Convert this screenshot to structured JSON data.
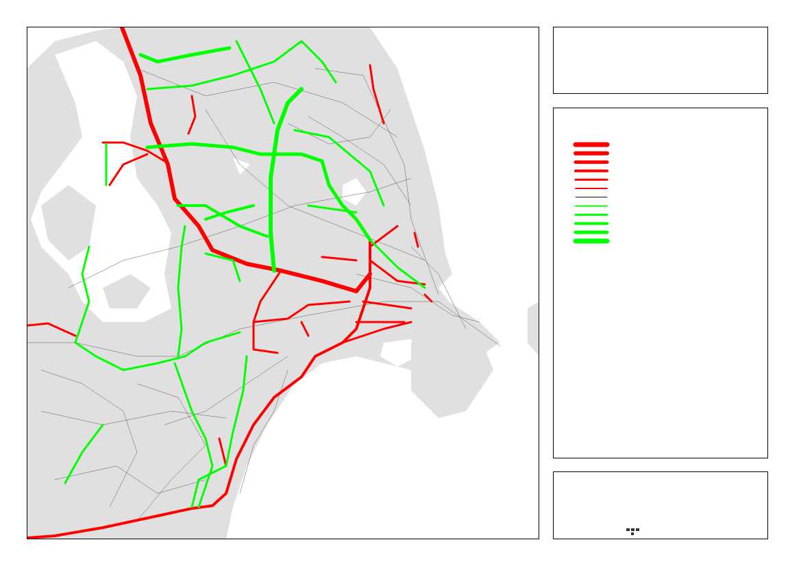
{
  "legend": {
    "items": [
      {
        "color": "#ff0000"
      },
      {
        "color": "#ff0000"
      },
      {
        "color": "#ff0000"
      },
      {
        "color": "#ff0000"
      },
      {
        "color": "#ff0000"
      },
      {
        "color": "#ff0000"
      },
      {
        "color": "#000000"
      },
      {
        "color": "#00ff00"
      },
      {
        "color": "#00ff00"
      },
      {
        "color": "#00ff00"
      },
      {
        "color": "#00ff00"
      },
      {
        "color": "#00ff00"
      }
    ]
  }
}
